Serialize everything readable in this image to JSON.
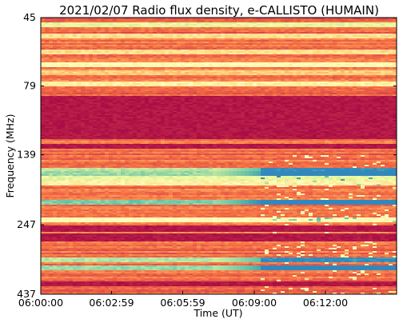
{
  "chart_data": {
    "type": "heatmap",
    "title": "2021/02/07  Radio flux density, e-CALLISTO (HUMAIN)",
    "xlabel": "Time (UT)",
    "ylabel": "Frequency (MHz)",
    "x_range": [
      "06:00:00",
      "06:15:00"
    ],
    "y_range": [
      45,
      437
    ],
    "y_axis_inverted": true,
    "x_ticks": [
      "06:00:00",
      "06:02:59",
      "06:05:59",
      "06:09:00",
      "06:12:00"
    ],
    "y_ticks": [
      "45",
      "79",
      "139",
      "247",
      "437"
    ],
    "colormap": [
      "#9e0142",
      "#d53e4f",
      "#f46d43",
      "#fdae61",
      "#fee08b",
      "#ffffbf",
      "#e6f598",
      "#abdda4",
      "#66c2a5",
      "#3288bd"
    ],
    "description_of_features": {
      "quiet_bands_mhz": [
        [
          86,
          122
        ],
        [
          127,
          132
        ],
        [
          250,
          262
        ],
        [
          265,
          285
        ],
        [
          395,
          410
        ]
      ],
      "bright_bands_mhz": [
        {
          "f": 48,
          "level": 0.6
        },
        {
          "f": 52,
          "level": 0.4
        },
        {
          "f": 60,
          "level": 0.4
        },
        {
          "f": 66,
          "level": 0.5
        },
        {
          "f": 71,
          "level": 0.35
        },
        {
          "f": 78,
          "level": 0.45
        },
        {
          "f": 158,
          "level": 0.7
        },
        {
          "f": 163,
          "level": 0.75
        },
        {
          "f": 168,
          "level": 0.6
        },
        {
          "f": 176,
          "level": 0.45
        },
        {
          "f": 206,
          "level": 0.8
        },
        {
          "f": 236,
          "level": 0.5
        },
        {
          "f": 330,
          "level": 0.7
        },
        {
          "f": 352,
          "level": 0.75
        }
      ],
      "burst_start_time": "06:09:20"
    }
  }
}
